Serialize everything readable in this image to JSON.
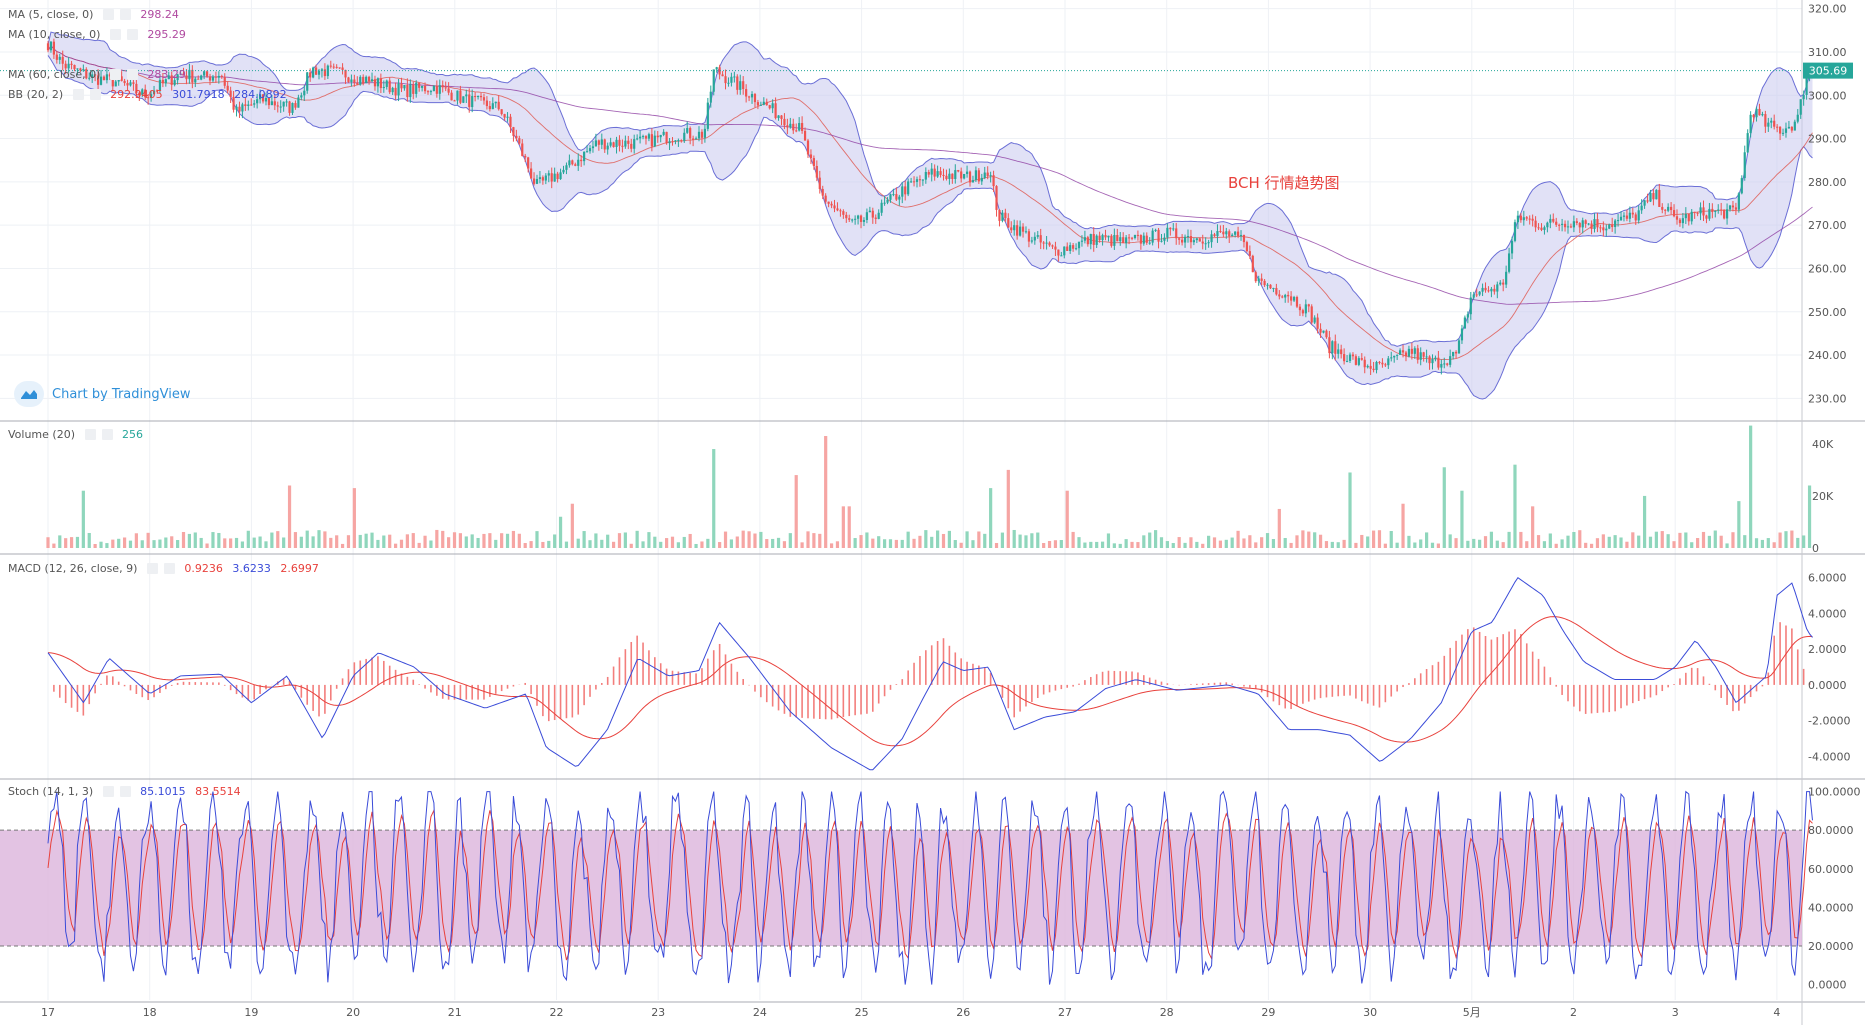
{
  "colors": {
    "up": "#26a69a",
    "down": "#ef5350",
    "up_light": "#8fd6bc",
    "down_light": "#f6a5a3",
    "bb_band": "#6b6fd6",
    "bb_fill": "#c9c9ef",
    "ma_fast": "#e0524a",
    "ma_slow": "#8e3fa3",
    "macd_line": "#3a4bd8",
    "signal_line": "#e8413c",
    "stoch_k": "#3a4bd8",
    "stoch_d": "#e8413c",
    "stoch_band": "#dcb4dc",
    "price_tag": "#26a69a"
  },
  "watermark": "Chart by TradingView",
  "chart_data": [
    {
      "type": "candlestick",
      "title": "BCH 行情趋势图",
      "x_ticks": [
        "17",
        "18",
        "19",
        "20",
        "21",
        "22",
        "23",
        "24",
        "25",
        "26",
        "27",
        "28",
        "29",
        "30",
        "5月",
        "2",
        "3",
        "4"
      ],
      "ylim": [
        225,
        322
      ],
      "y_ticks": [
        "230.00",
        "240.00",
        "250.00",
        "260.00",
        "270.00",
        "280.00",
        "290.00",
        "300.00",
        "310.00",
        "320.00"
      ],
      "last_price": "305.69",
      "close_path": [
        [
          0,
          312
        ],
        [
          0.15,
          307
        ],
        [
          0.45,
          304
        ],
        [
          0.7,
          303
        ],
        [
          0.95,
          300
        ],
        [
          1.3,
          305
        ],
        [
          1.5,
          304
        ],
        [
          1.7,
          305
        ],
        [
          1.85,
          296
        ],
        [
          2.1,
          299
        ],
        [
          2.4,
          297
        ],
        [
          2.6,
          306
        ],
        [
          2.9,
          305
        ],
        [
          3.2,
          303
        ],
        [
          3.5,
          301
        ],
        [
          3.8,
          302
        ],
        [
          4.1,
          299
        ],
        [
          4.45,
          297
        ],
        [
          4.6,
          290
        ],
        [
          4.8,
          279
        ],
        [
          5.1,
          283
        ],
        [
          5.4,
          289
        ],
        [
          5.8,
          289
        ],
        [
          6.2,
          291
        ],
        [
          6.45,
          291
        ],
        [
          6.55,
          306
        ],
        [
          6.8,
          302
        ],
        [
          7.1,
          297
        ],
        [
          7.4,
          292
        ],
        [
          7.6,
          277
        ],
        [
          7.9,
          270
        ],
        [
          8.1,
          272
        ],
        [
          8.4,
          278
        ],
        [
          8.7,
          282
        ],
        [
          9.1,
          281
        ],
        [
          9.25,
          283
        ],
        [
          9.35,
          272
        ],
        [
          9.6,
          268
        ],
        [
          9.9,
          264
        ],
        [
          10.3,
          267
        ],
        [
          10.6,
          266
        ],
        [
          11.0,
          268
        ],
        [
          11.3,
          267
        ],
        [
          11.6,
          268
        ],
        [
          11.75,
          266
        ],
        [
          11.9,
          257
        ],
        [
          12.2,
          254
        ],
        [
          12.4,
          250
        ],
        [
          12.6,
          242
        ],
        [
          12.9,
          238
        ],
        [
          13.1,
          237
        ],
        [
          13.4,
          241
        ],
        [
          13.6,
          238
        ],
        [
          13.85,
          240
        ],
        [
          14.0,
          254
        ],
        [
          14.3,
          256
        ],
        [
          14.45,
          272
        ],
        [
          14.7,
          270
        ],
        [
          15.0,
          271
        ],
        [
          15.3,
          270
        ],
        [
          15.6,
          272
        ],
        [
          15.8,
          277
        ],
        [
          16.0,
          271
        ],
        [
          16.3,
          273
        ],
        [
          16.6,
          273
        ],
        [
          16.75,
          297
        ],
        [
          16.9,
          293
        ],
        [
          17.05,
          292
        ],
        [
          17.2,
          294
        ],
        [
          17.3,
          305.7
        ]
      ],
      "indicators": {
        "ma_a_label": "MA (5, close, 0)",
        "ma_a_value": "298.24",
        "ma_b_label": "MA (10, close, 0)",
        "ma_b_value": "295.29",
        "ma_c_label": "MA (60, close, 0)",
        "ma_c_value": "283.29",
        "bb_label": "BB (20, 2)",
        "bb_basis": "292.9405",
        "bb_upper": "301.7918",
        "bb_lower": "284.0892"
      }
    },
    {
      "type": "bar",
      "title": "Volume (20)",
      "last_value": "256",
      "y_ticks": [
        "0",
        "20K",
        "40K"
      ],
      "ylim": [
        0,
        48000
      ],
      "spikes": [
        [
          0.35,
          22000
        ],
        [
          2.4,
          24000
        ],
        [
          3.0,
          23000
        ],
        [
          5.05,
          12000
        ],
        [
          5.15,
          17000
        ],
        [
          6.55,
          38000
        ],
        [
          7.35,
          28000
        ],
        [
          7.65,
          43000
        ],
        [
          7.85,
          16000
        ],
        [
          9.25,
          23000
        ],
        [
          9.45,
          30000
        ],
        [
          10.0,
          22000
        ],
        [
          12.1,
          15000
        ],
        [
          12.8,
          29000
        ],
        [
          13.3,
          17000
        ],
        [
          13.75,
          31000
        ],
        [
          13.9,
          22000
        ],
        [
          14.4,
          32000
        ],
        [
          14.6,
          16000
        ],
        [
          15.7,
          20000
        ],
        [
          16.6,
          18000
        ],
        [
          16.75,
          47000
        ],
        [
          17.3,
          24000
        ]
      ]
    },
    {
      "type": "line",
      "title": "MACD (12, 26, close, 9)",
      "values_shown": [
        "0.9236",
        "3.6233",
        "2.6997"
      ],
      "ylim": [
        -5.2,
        7.2
      ],
      "y_ticks": [
        "-4.0000",
        "-2.0000",
        "0.0000",
        "2.0000",
        "4.0000",
        "6.0000"
      ],
      "macd_path": [
        [
          0,
          1.8
        ],
        [
          0.35,
          -1.0
        ],
        [
          0.6,
          1.5
        ],
        [
          1.0,
          -0.5
        ],
        [
          1.3,
          0.5
        ],
        [
          1.7,
          0.6
        ],
        [
          2.0,
          -1.0
        ],
        [
          2.35,
          0.5
        ],
        [
          2.7,
          -3.0
        ],
        [
          3.0,
          0.5
        ],
        [
          3.25,
          1.8
        ],
        [
          3.6,
          1.0
        ],
        [
          3.9,
          -0.5
        ],
        [
          4.3,
          -1.3
        ],
        [
          4.7,
          -0.5
        ],
        [
          4.9,
          -3.5
        ],
        [
          5.2,
          -4.6
        ],
        [
          5.5,
          -2.5
        ],
        [
          5.8,
          1.5
        ],
        [
          6.1,
          0.5
        ],
        [
          6.4,
          0.8
        ],
        [
          6.6,
          3.5
        ],
        [
          6.9,
          1.5
        ],
        [
          7.3,
          -1.5
        ],
        [
          7.7,
          -3.5
        ],
        [
          8.1,
          -4.8
        ],
        [
          8.4,
          -3.0
        ],
        [
          8.6,
          -0.8
        ],
        [
          8.8,
          1.3
        ],
        [
          9.0,
          0.8
        ],
        [
          9.25,
          1.0
        ],
        [
          9.5,
          -2.5
        ],
        [
          9.8,
          -1.8
        ],
        [
          10.1,
          -1.5
        ],
        [
          10.4,
          -0.2
        ],
        [
          10.7,
          0.3
        ],
        [
          11.1,
          -0.3
        ],
        [
          11.6,
          0.0
        ],
        [
          11.9,
          -0.5
        ],
        [
          12.2,
          -2.5
        ],
        [
          12.5,
          -2.5
        ],
        [
          12.8,
          -2.8
        ],
        [
          13.1,
          -4.3
        ],
        [
          13.4,
          -3.0
        ],
        [
          13.7,
          -1.0
        ],
        [
          14.0,
          3.0
        ],
        [
          14.2,
          3.5
        ],
        [
          14.45,
          6.0
        ],
        [
          14.7,
          5.0
        ],
        [
          14.9,
          3.0
        ],
        [
          15.1,
          1.3
        ],
        [
          15.4,
          0.3
        ],
        [
          15.8,
          0.3
        ],
        [
          16.0,
          1.0
        ],
        [
          16.2,
          2.5
        ],
        [
          16.4,
          1.0
        ],
        [
          16.6,
          -1.0
        ],
        [
          16.9,
          0.5
        ],
        [
          17.0,
          5.0
        ],
        [
          17.15,
          5.7
        ],
        [
          17.3,
          3.0
        ],
        [
          17.4,
          2.3
        ],
        [
          17.5,
          3.6
        ]
      ]
    },
    {
      "type": "line",
      "title": "Stoch (14, 1, 3)",
      "values_shown": [
        "85.1015",
        "83.5514"
      ],
      "ylim": [
        -8,
        106
      ],
      "y_ticks": [
        "0.0000",
        "20.0000",
        "40.0000",
        "60.0000",
        "80.0000",
        "100.0000"
      ],
      "bands": [
        20,
        80
      ]
    }
  ]
}
